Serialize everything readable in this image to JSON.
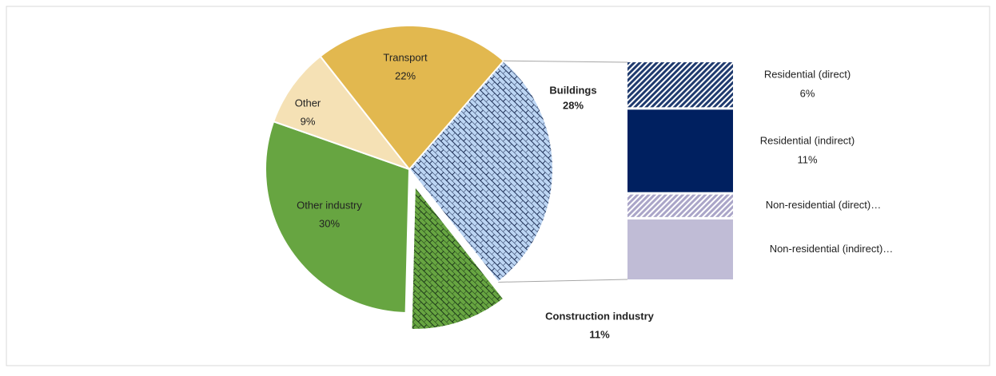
{
  "chart_data": {
    "type": "pie",
    "categories": [
      "Buildings",
      "Construction industry",
      "Other industry",
      "Other",
      "Transport"
    ],
    "values": [
      28,
      11,
      30,
      9,
      22
    ],
    "value_labels": [
      "28%",
      "11%",
      "30%",
      "9%",
      "22%"
    ],
    "colors": [
      "#bcd5f3",
      "#67a541",
      "#67a541",
      "#f5e1b5",
      "#e2b84f"
    ],
    "bar": {
      "categories": [
        "Residential (direct)",
        "Residential (indirect)",
        "Non-residential (direct)…",
        "Non-residential (indirect)…"
      ],
      "values": [
        6,
        11,
        3,
        8
      ],
      "value_labels": [
        "6%",
        "11%",
        null,
        null
      ],
      "colors": [
        "#1f3a6e",
        "#002060",
        "#c9c5dc",
        "#c0bcd6"
      ]
    }
  }
}
